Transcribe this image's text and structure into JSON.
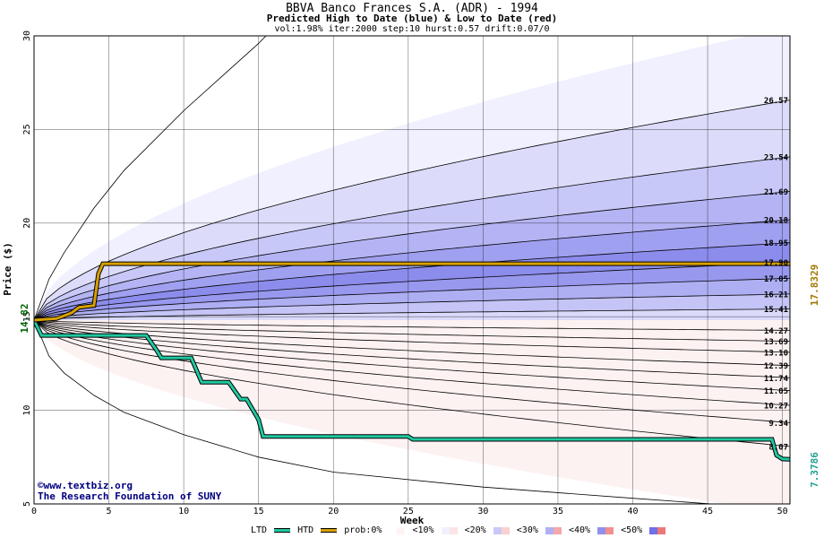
{
  "header": {
    "title": "BBVA Banco Frances S.A. (ADR) - 1994",
    "subtitle": "Predicted High to Date (blue) &  Low to Date (red)",
    "params": "vol:1.98% iter:2000 step:10 hurst:0.57 drift:0.07/0"
  },
  "credits": {
    "line1": "©www.textbiz.org",
    "line2": "The Research Foundation of SUNY"
  },
  "legend": {
    "ltd": "LTD",
    "htd": "HTD",
    "prob": "prob:0%",
    "b10": "<10%",
    "b20": "<20%",
    "b30": "<30%",
    "b40": "<40%",
    "b50": "<50%"
  },
  "colors": {
    "ltd": "#20c8a0",
    "htd": "#d8a000",
    "start_label": "#006400",
    "htd_label": "#a07800",
    "ltd_label": "#20a090"
  },
  "chart_data": {
    "type": "area",
    "title": "BBVA Banco Frances S.A. (ADR) - 1994",
    "xlabel": "Week",
    "ylabel": "Price ($)",
    "xlim": [
      0,
      50.5
    ],
    "ylim": [
      5,
      30
    ],
    "xticks": [
      "0",
      "5",
      "10",
      "15",
      "20",
      "25",
      "30",
      "35",
      "40",
      "45",
      "50"
    ],
    "yticks": [
      "5",
      "10",
      "15",
      "20",
      "25",
      "30"
    ],
    "start_price": "14.82",
    "high_quantiles": {
      "ends": [
        30.5,
        26.57,
        23.54,
        21.69,
        20.18,
        18.95,
        17.9,
        17.05,
        16.21,
        15.41
      ],
      "labels": [
        "26.57",
        "23.54",
        "21.69",
        "20.18",
        "18.95",
        "17.90",
        "17.05",
        "16.21",
        "15.41"
      ],
      "fills": [
        "#f0f0ff",
        "#dcdcfa",
        "#c8c8f8",
        "#b4b4f4",
        "#a0a0f0",
        "#8c8cec",
        "#9898ee",
        "#aeaef2",
        "#c4c4f6",
        "#dadafa"
      ]
    },
    "low_quantiles": {
      "ends": [
        14.27,
        13.69,
        13.1,
        12.39,
        11.74,
        11.05,
        10.27,
        9.34,
        8.07,
        4.5
      ],
      "labels": [
        "14.27",
        "13.69",
        "13.10",
        "12.39",
        "11.74",
        "11.05",
        "10.27",
        "9.34",
        "8.07"
      ],
      "fills": [
        "#fce8e8",
        "#fad4d4",
        "#f8c0c0",
        "#f4a8a8",
        "#f09494",
        "#f4a4a4",
        "#f8bcbc",
        "#fad0d0",
        "#fce4e4",
        "#fdf2f2"
      ]
    },
    "htd_series": {
      "name": "HTD",
      "final_label": "17.8329",
      "x": [
        0,
        1.5,
        2.5,
        3,
        4,
        4.3,
        4.6,
        50.5
      ],
      "y": [
        14.82,
        14.9,
        15.2,
        15.5,
        15.6,
        17.3,
        17.83,
        17.83
      ]
    },
    "ltd_series": {
      "name": "LTD",
      "final_label": "7.3786",
      "x": [
        0,
        0.5,
        7.5,
        8.2,
        8.5,
        10.5,
        11.2,
        13,
        13.8,
        14.2,
        15,
        15.3,
        25,
        25.3,
        49.3,
        49.6,
        50,
        50.5
      ],
      "y": [
        14.82,
        14.0,
        14.0,
        13.2,
        12.8,
        12.8,
        11.5,
        11.5,
        10.6,
        10.6,
        9.5,
        8.6,
        8.6,
        8.45,
        8.45,
        7.6,
        7.4,
        7.38
      ]
    },
    "bound_curves": {
      "upper_x": [
        0,
        1,
        2,
        4,
        6,
        10,
        15,
        15.5
      ],
      "upper_y": [
        14.82,
        17.0,
        18.4,
        20.8,
        22.8,
        26.0,
        29.6,
        30
      ],
      "lower_x": [
        0,
        1,
        2,
        4,
        6,
        10,
        15,
        20,
        30,
        40,
        50.5
      ],
      "lower_y": [
        14.82,
        12.9,
        12.0,
        10.8,
        9.9,
        8.7,
        7.5,
        6.7,
        5.9,
        5.3,
        4.7
      ]
    }
  }
}
